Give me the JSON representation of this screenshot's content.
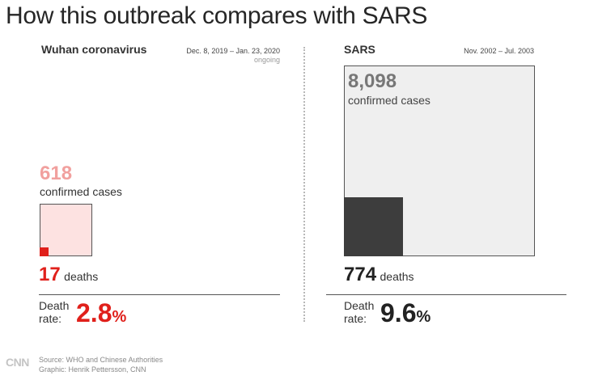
{
  "title": "How this outbreak compares with SARS",
  "left": {
    "name": "Wuhan coronavirus",
    "dates": "Dec. 8, 2019 – Jan. 23, 2020",
    "status": "ongoing",
    "cases": "618",
    "cases_label": "confirmed cases",
    "deaths": "17",
    "deaths_label": "deaths",
    "rate_label_1": "Death",
    "rate_label_2": "rate:",
    "rate_value": "2.8",
    "rate_unit": "%"
  },
  "right": {
    "name": "SARS",
    "dates": "Nov. 2002 – Jul. 2003",
    "cases": "8,098",
    "cases_label": "confirmed cases",
    "deaths": "774",
    "deaths_label": "deaths",
    "rate_label_1": "Death",
    "rate_label_2": "rate:",
    "rate_value": "9.6",
    "rate_unit": "%"
  },
  "footer": {
    "logo": "CNN",
    "source": "Source: WHO and Chinese Authorities",
    "graphic": "Graphic: Henrik Pettersson, CNN"
  },
  "colors": {
    "wuhan_accent": "#e0201b",
    "wuhan_cases_text": "#f1a09e",
    "wuhan_square_fill": "#fde2e1",
    "sars_deaths_fill": "#3d3d3d",
    "sars_cases_text": "#777777",
    "sars_square_fill": "#efefef"
  },
  "chart_data": [
    {
      "type": "area-square",
      "series": [
        {
          "name": "Wuhan coronavirus",
          "cases": 618,
          "deaths": 17,
          "death_rate_pct": 2.8
        },
        {
          "name": "SARS",
          "cases": 8098,
          "deaths": 774,
          "death_rate_pct": 9.6
        }
      ]
    }
  ]
}
